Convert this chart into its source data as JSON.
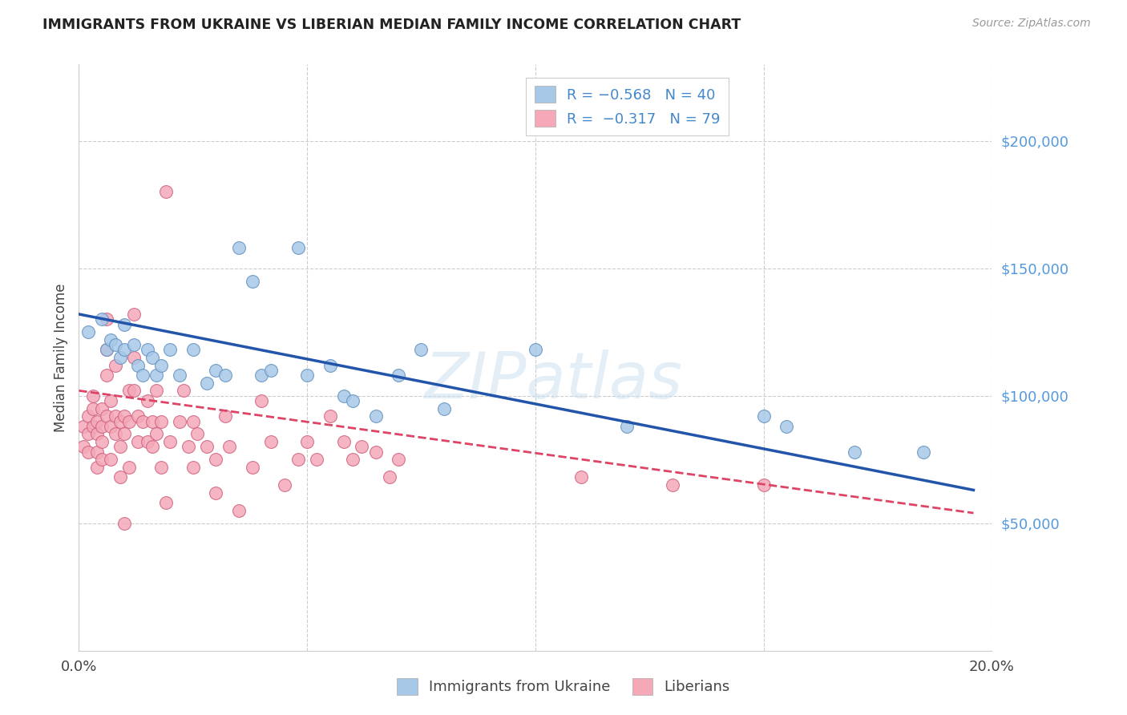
{
  "title": "IMMIGRANTS FROM UKRAINE VS LIBERIAN MEDIAN FAMILY INCOME CORRELATION CHART",
  "source": "Source: ZipAtlas.com",
  "ylabel": "Median Family Income",
  "ytick_labels": [
    "$50,000",
    "$100,000",
    "$150,000",
    "$200,000"
  ],
  "ytick_values": [
    50000,
    100000,
    150000,
    200000
  ],
  "ylim": [
    0,
    230000
  ],
  "xlim": [
    0.0,
    0.2
  ],
  "xticks": [
    0.0,
    0.05,
    0.1,
    0.15,
    0.2
  ],
  "xticklabels": [
    "0.0%",
    "",
    "",
    "",
    "20.0%"
  ],
  "ukraine_color": "#a8c8e8",
  "ukraine_edge": "#6090c0",
  "liberia_color": "#f4a8b8",
  "liberia_edge": "#d06080",
  "trend_ukraine_color": "#2255aa",
  "trend_liberia_color": "#dd4466",
  "trend_ukraine_x0": 0.0,
  "trend_ukraine_x1": 0.196,
  "trend_ukraine_y0": 132000,
  "trend_ukraine_y1": 63000,
  "trend_liberia_x0": 0.0,
  "trend_liberia_x1": 0.196,
  "trend_liberia_y0": 102000,
  "trend_liberia_y1": 54000,
  "watermark": "ZIPatlas",
  "ukraine_scatter": [
    [
      0.002,
      125000
    ],
    [
      0.005,
      130000
    ],
    [
      0.006,
      118000
    ],
    [
      0.007,
      122000
    ],
    [
      0.008,
      120000
    ],
    [
      0.009,
      115000
    ],
    [
      0.01,
      118000
    ],
    [
      0.01,
      128000
    ],
    [
      0.012,
      120000
    ],
    [
      0.013,
      112000
    ],
    [
      0.014,
      108000
    ],
    [
      0.015,
      118000
    ],
    [
      0.016,
      115000
    ],
    [
      0.017,
      108000
    ],
    [
      0.018,
      112000
    ],
    [
      0.02,
      118000
    ],
    [
      0.022,
      108000
    ],
    [
      0.025,
      118000
    ],
    [
      0.028,
      105000
    ],
    [
      0.03,
      110000
    ],
    [
      0.032,
      108000
    ],
    [
      0.035,
      158000
    ],
    [
      0.038,
      145000
    ],
    [
      0.04,
      108000
    ],
    [
      0.042,
      110000
    ],
    [
      0.048,
      158000
    ],
    [
      0.05,
      108000
    ],
    [
      0.055,
      112000
    ],
    [
      0.058,
      100000
    ],
    [
      0.06,
      98000
    ],
    [
      0.065,
      92000
    ],
    [
      0.07,
      108000
    ],
    [
      0.075,
      118000
    ],
    [
      0.08,
      95000
    ],
    [
      0.1,
      118000
    ],
    [
      0.12,
      88000
    ],
    [
      0.15,
      92000
    ],
    [
      0.155,
      88000
    ],
    [
      0.17,
      78000
    ],
    [
      0.185,
      78000
    ]
  ],
  "liberia_scatter": [
    [
      0.001,
      88000
    ],
    [
      0.001,
      80000
    ],
    [
      0.002,
      92000
    ],
    [
      0.002,
      78000
    ],
    [
      0.002,
      85000
    ],
    [
      0.003,
      100000
    ],
    [
      0.003,
      95000
    ],
    [
      0.003,
      88000
    ],
    [
      0.004,
      85000
    ],
    [
      0.004,
      90000
    ],
    [
      0.004,
      78000
    ],
    [
      0.004,
      72000
    ],
    [
      0.005,
      75000
    ],
    [
      0.005,
      82000
    ],
    [
      0.005,
      95000
    ],
    [
      0.005,
      88000
    ],
    [
      0.006,
      92000
    ],
    [
      0.006,
      130000
    ],
    [
      0.006,
      118000
    ],
    [
      0.006,
      108000
    ],
    [
      0.007,
      88000
    ],
    [
      0.007,
      98000
    ],
    [
      0.007,
      75000
    ],
    [
      0.008,
      85000
    ],
    [
      0.008,
      92000
    ],
    [
      0.008,
      112000
    ],
    [
      0.009,
      90000
    ],
    [
      0.009,
      80000
    ],
    [
      0.009,
      68000
    ],
    [
      0.01,
      92000
    ],
    [
      0.01,
      85000
    ],
    [
      0.01,
      50000
    ],
    [
      0.011,
      102000
    ],
    [
      0.011,
      90000
    ],
    [
      0.011,
      72000
    ],
    [
      0.012,
      132000
    ],
    [
      0.012,
      115000
    ],
    [
      0.012,
      102000
    ],
    [
      0.013,
      92000
    ],
    [
      0.013,
      82000
    ],
    [
      0.014,
      90000
    ],
    [
      0.015,
      98000
    ],
    [
      0.015,
      82000
    ],
    [
      0.016,
      90000
    ],
    [
      0.016,
      80000
    ],
    [
      0.017,
      102000
    ],
    [
      0.017,
      85000
    ],
    [
      0.018,
      90000
    ],
    [
      0.018,
      72000
    ],
    [
      0.019,
      58000
    ],
    [
      0.019,
      180000
    ],
    [
      0.02,
      82000
    ],
    [
      0.022,
      90000
    ],
    [
      0.023,
      102000
    ],
    [
      0.024,
      80000
    ],
    [
      0.025,
      72000
    ],
    [
      0.025,
      90000
    ],
    [
      0.026,
      85000
    ],
    [
      0.028,
      80000
    ],
    [
      0.03,
      75000
    ],
    [
      0.03,
      62000
    ],
    [
      0.032,
      92000
    ],
    [
      0.033,
      80000
    ],
    [
      0.035,
      55000
    ],
    [
      0.038,
      72000
    ],
    [
      0.04,
      98000
    ],
    [
      0.042,
      82000
    ],
    [
      0.045,
      65000
    ],
    [
      0.048,
      75000
    ],
    [
      0.05,
      82000
    ],
    [
      0.052,
      75000
    ],
    [
      0.055,
      92000
    ],
    [
      0.058,
      82000
    ],
    [
      0.06,
      75000
    ],
    [
      0.062,
      80000
    ],
    [
      0.065,
      78000
    ],
    [
      0.068,
      68000
    ],
    [
      0.07,
      75000
    ],
    [
      0.11,
      68000
    ],
    [
      0.13,
      65000
    ],
    [
      0.15,
      65000
    ]
  ]
}
